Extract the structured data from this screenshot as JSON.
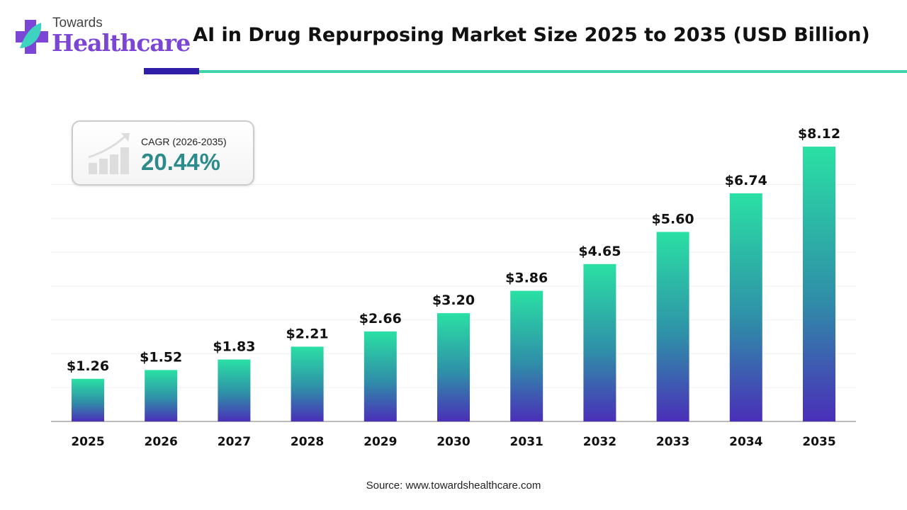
{
  "logo": {
    "line1": "Towards",
    "line2": "Healthcare"
  },
  "title": "AI in Drug Repurposing Market Size 2025 to 2035 (USD Billion)",
  "cagr": {
    "label": "CAGR (2026-2035)",
    "value": "20.44%",
    "icon": "growth-chart-icon"
  },
  "source": "Source: www.towardshealthcare.com",
  "colors": {
    "bar_top": "#2ae0a4",
    "bar_bottom": "#4a2fb8",
    "accent_dark": "#2e1ea8",
    "accent_teal": "#3ed3a8",
    "cagr_value": "#2e8b8b"
  },
  "chart_data": {
    "type": "bar",
    "categories": [
      "2025",
      "2026",
      "2027",
      "2028",
      "2029",
      "2030",
      "2031",
      "2032",
      "2033",
      "2034",
      "2035"
    ],
    "values": [
      1.26,
      1.52,
      1.83,
      2.21,
      2.66,
      3.2,
      3.86,
      4.65,
      5.6,
      6.74,
      8.12
    ],
    "data_labels": [
      "$1.26",
      "$1.52",
      "$1.83",
      "$2.21",
      "$2.66",
      "$3.20",
      "$3.86",
      "$4.65",
      "$5.60",
      "$6.74",
      "$8.12"
    ],
    "title": "AI in Drug Repurposing Market Size 2025 to 2035 (USD Billion)",
    "xlabel": "",
    "ylabel": "",
    "ylim": [
      0,
      8.12
    ],
    "grid": true,
    "legend": "none"
  }
}
